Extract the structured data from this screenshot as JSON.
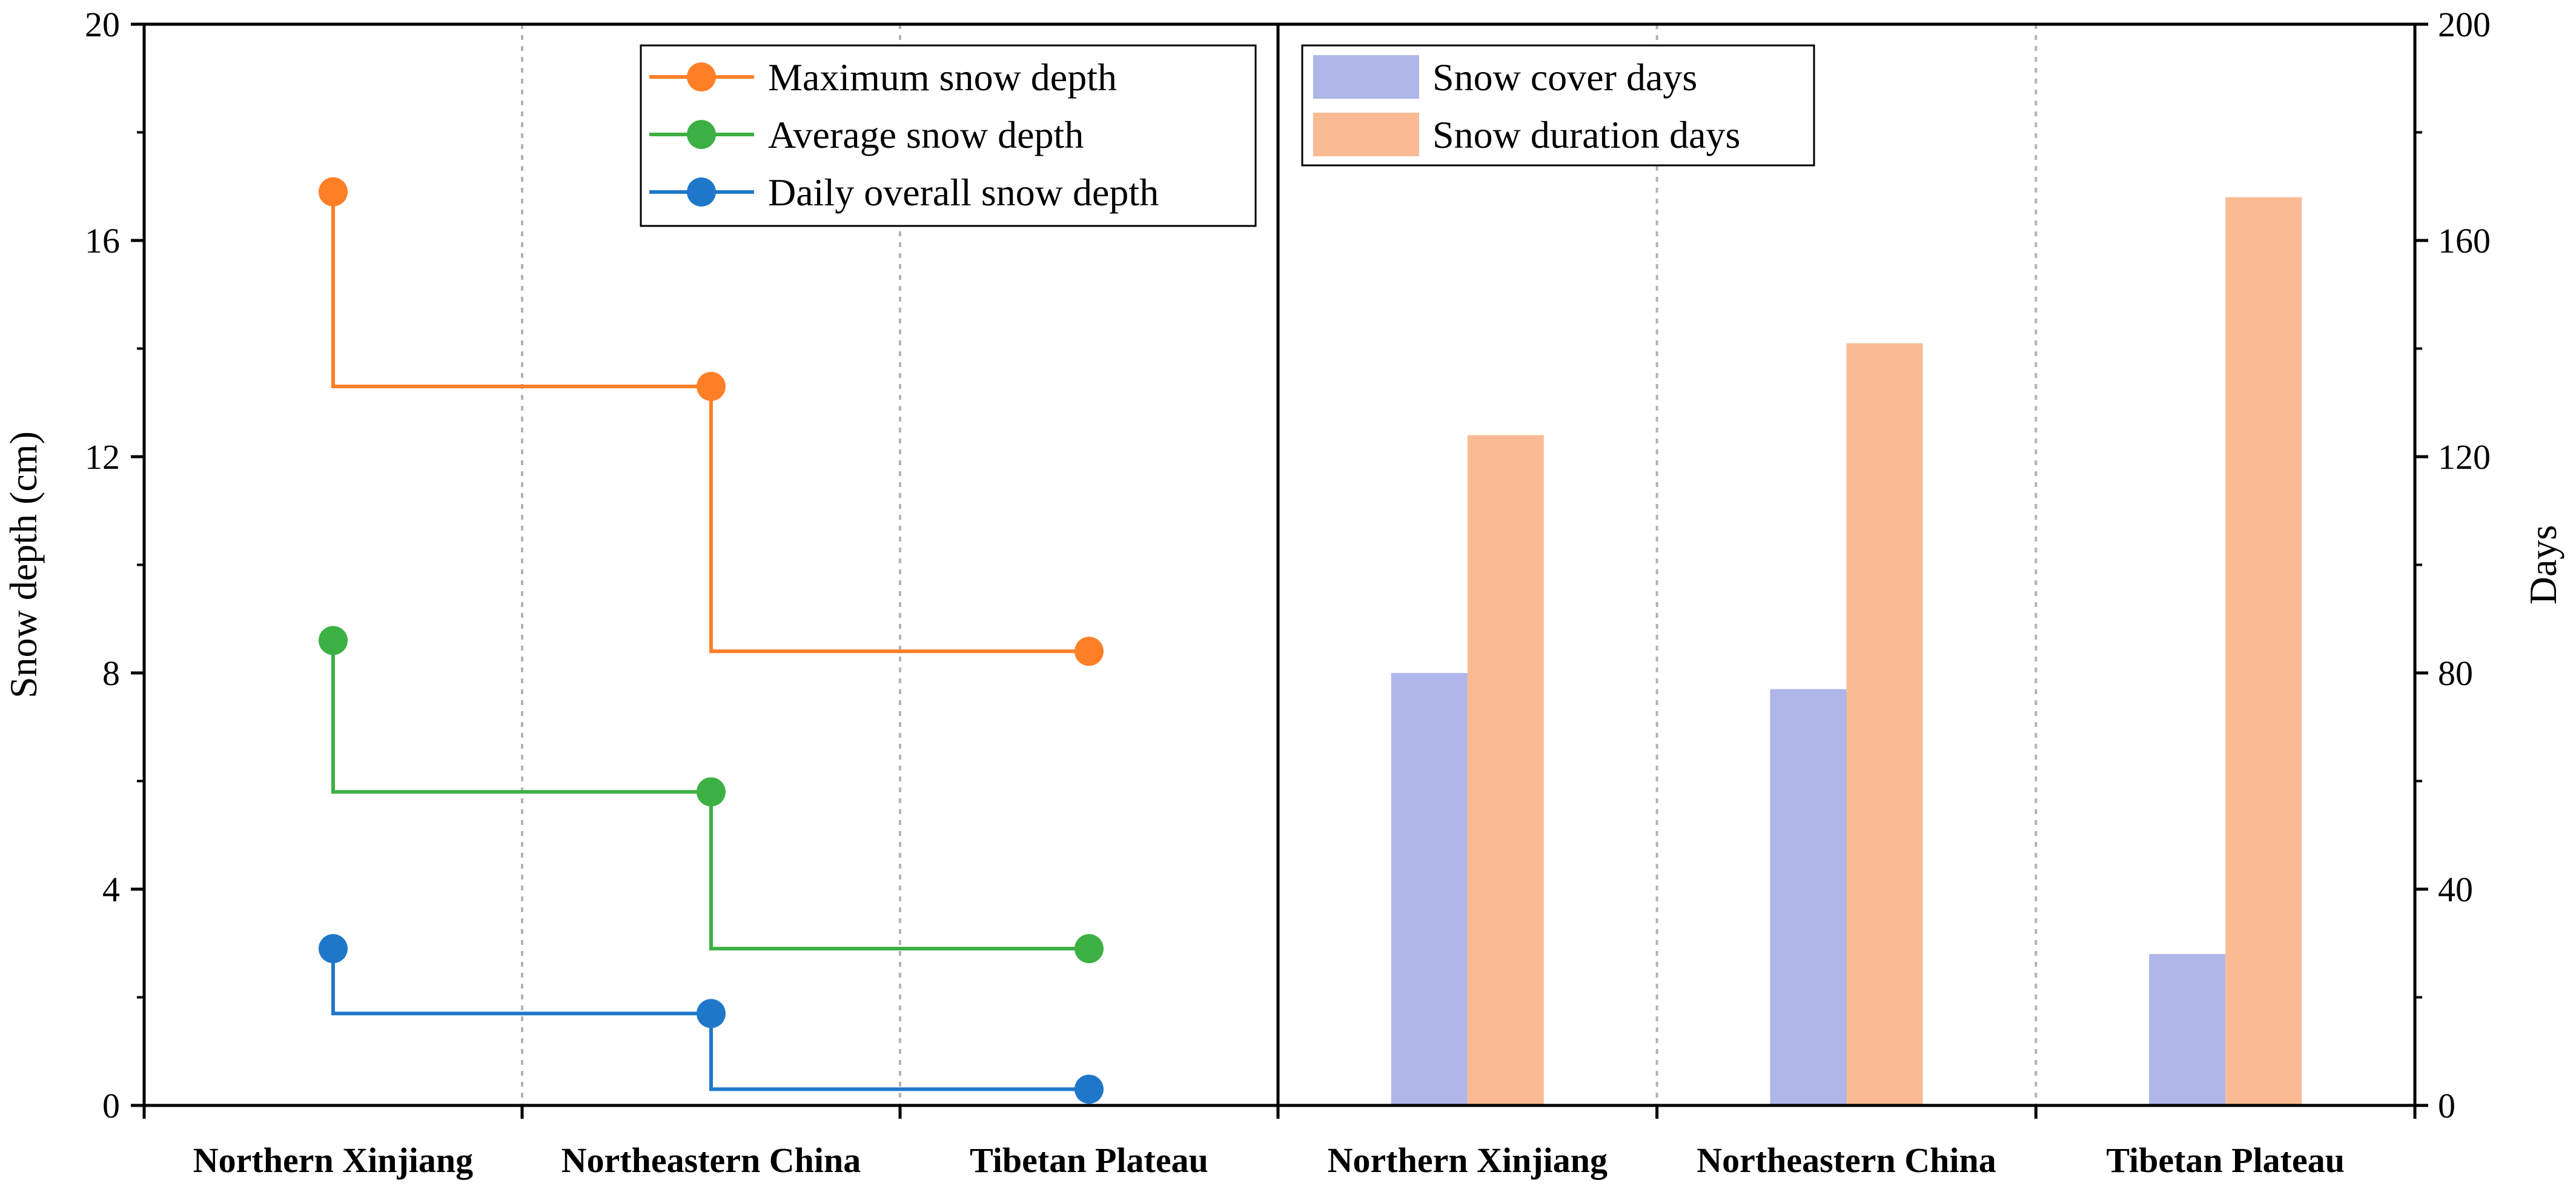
{
  "chart_data": [
    {
      "type": "line",
      "subtype": "step",
      "categories": [
        "Northern Xinjiang",
        "Northeastern China",
        "Tibetan Plateau"
      ],
      "ylabel": "Snow depth (cm)",
      "ylim": [
        0,
        20
      ],
      "yticks": [
        0,
        4,
        8,
        12,
        16,
        20
      ],
      "legend_position": "top-center",
      "series": [
        {
          "name": "Maximum snow depth",
          "color": "#ff7f27",
          "values": [
            16.9,
            13.3,
            8.4
          ]
        },
        {
          "name": "Average snow depth",
          "color": "#3cb043",
          "values": [
            8.6,
            5.8,
            2.9
          ]
        },
        {
          "name": "Daily overall snow depth",
          "color": "#1f77c9",
          "values": [
            2.9,
            1.7,
            0.3
          ]
        }
      ]
    },
    {
      "type": "bar",
      "categories": [
        "Northern Xinjiang",
        "Northeastern China",
        "Tibetan Plateau"
      ],
      "ylabel": "Days",
      "ylim": [
        0,
        200
      ],
      "yticks": [
        0,
        40,
        80,
        120,
        160,
        200
      ],
      "legend_position": "top-left",
      "series": [
        {
          "name": "Snow cover days",
          "color": "#aeb6ea",
          "values": [
            80,
            77,
            28
          ]
        },
        {
          "name": "Snow duration days",
          "color": "#fabb94",
          "values": [
            124,
            141,
            168
          ]
        }
      ]
    }
  ]
}
